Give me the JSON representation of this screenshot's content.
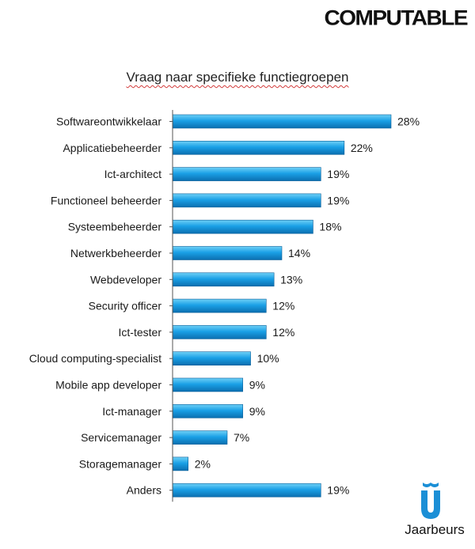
{
  "brand": {
    "logo_text": "COMPUTABLE",
    "footer_logo_text": "Jaarbeurs"
  },
  "colors": {
    "bar_top": "#6fd0f6",
    "bar_mid": "#1aa0e6",
    "bar_bottom": "#0b6fb0",
    "text": "#1a1a1a"
  },
  "chart_data": {
    "type": "bar",
    "orientation": "horizontal",
    "title": "Vraag naar specifieke functiegroepen",
    "xlabel": "",
    "ylabel": "",
    "xlim": [
      0,
      28
    ],
    "grid": false,
    "value_suffix": "%",
    "categories": [
      "Softwareontwikkelaar",
      "Applicatiebeheerder",
      "Ict-architect",
      "Functioneel  beheerder",
      "Systeembeheerder",
      "Netwerkbeheerder",
      "Webdeveloper",
      "Security officer",
      "Ict-tester",
      "Cloud computing-specialist",
      "Mobile app developer",
      "Ict-manager",
      "Servicemanager",
      "Storagemanager",
      "Anders"
    ],
    "values": [
      28,
      22,
      19,
      19,
      18,
      14,
      13,
      12,
      12,
      10,
      9,
      9,
      7,
      2,
      19
    ]
  }
}
